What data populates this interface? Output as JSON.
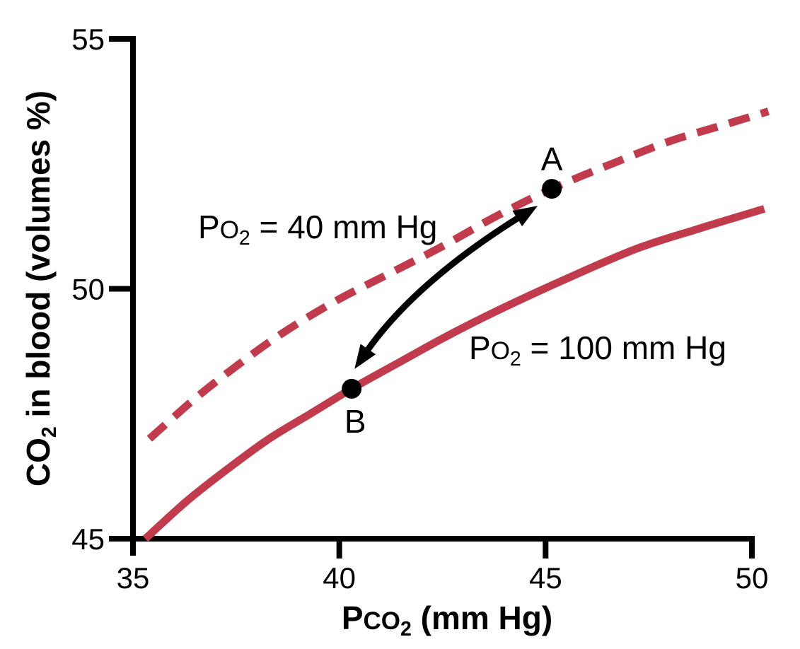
{
  "chart_data": {
    "type": "line",
    "title": "",
    "xlabel": "Pco2 (mm Hg)",
    "ylabel": "CO2 in blood (volumes %)",
    "xlabel_parts": [
      {
        "t": "P",
        "s": "n"
      },
      {
        "t": "CO",
        "s": "sm"
      },
      {
        "t": "2",
        "s": "sub"
      },
      {
        "t": " (mm Hg)",
        "s": "n"
      }
    ],
    "ylabel_parts": [
      {
        "t": "CO",
        "s": "n"
      },
      {
        "t": "2",
        "s": "sub"
      },
      {
        "t": " in blood (volumes %)",
        "s": "n"
      }
    ],
    "xlim": [
      35,
      50
    ],
    "ylim": [
      45,
      55
    ],
    "xticks": [
      35,
      40,
      45,
      50
    ],
    "yticks": [
      45,
      50,
      55
    ],
    "grid": false,
    "axis_color": "#000000",
    "curve_color": "#c23b4d",
    "arrow_color": "#000000",
    "series": [
      {
        "name": "Po2 = 40 mm Hg",
        "line_style": "dashed",
        "color": "#c23b4d",
        "label_parts": [
          {
            "t": "P",
            "s": "n"
          },
          {
            "t": "O",
            "s": "sm"
          },
          {
            "t": "2",
            "s": "sub"
          },
          {
            "t": " = 40 mm Hg",
            "s": "n"
          }
        ],
        "points": [
          [
            35.4,
            47.0
          ],
          [
            36.5,
            47.8
          ],
          [
            37.5,
            48.45
          ],
          [
            38.6,
            49.1
          ],
          [
            39.9,
            49.75
          ],
          [
            41.2,
            50.3
          ],
          [
            42.5,
            50.85
          ],
          [
            43.8,
            51.45
          ],
          [
            45.15,
            52.0
          ],
          [
            46.6,
            52.5
          ],
          [
            48.0,
            52.95
          ],
          [
            49.2,
            53.25
          ],
          [
            50.4,
            53.55
          ]
        ]
      },
      {
        "name": "Po2 = 100 mm Hg",
        "line_style": "solid",
        "color": "#c23b4d",
        "label_parts": [
          {
            "t": "P",
            "s": "n"
          },
          {
            "t": "O",
            "s": "sm"
          },
          {
            "t": "2",
            "s": "sub"
          },
          {
            "t": " = 100 mm Hg",
            "s": "n"
          }
        ],
        "points": [
          [
            35.3,
            45.0
          ],
          [
            36.3,
            45.75
          ],
          [
            37.3,
            46.4
          ],
          [
            38.3,
            47.0
          ],
          [
            39.3,
            47.5
          ],
          [
            40.3,
            48.0
          ],
          [
            41.5,
            48.55
          ],
          [
            42.6,
            49.05
          ],
          [
            43.8,
            49.55
          ],
          [
            45.5,
            50.2
          ],
          [
            47.2,
            50.8
          ],
          [
            48.7,
            51.2
          ],
          [
            50.3,
            51.6
          ]
        ]
      }
    ],
    "annotations": {
      "points": [
        {
          "label": "A",
          "x": 45.15,
          "y": 52.0,
          "on_series": "Po2 = 40 mm Hg"
        },
        {
          "label": "B",
          "x": 40.3,
          "y": 48.0,
          "on_series": "Po2 = 100 mm Hg"
        }
      ],
      "arrow": {
        "from": "B",
        "to": "A",
        "double_headed": true,
        "curved": true
      }
    },
    "legend_position": "none"
  }
}
